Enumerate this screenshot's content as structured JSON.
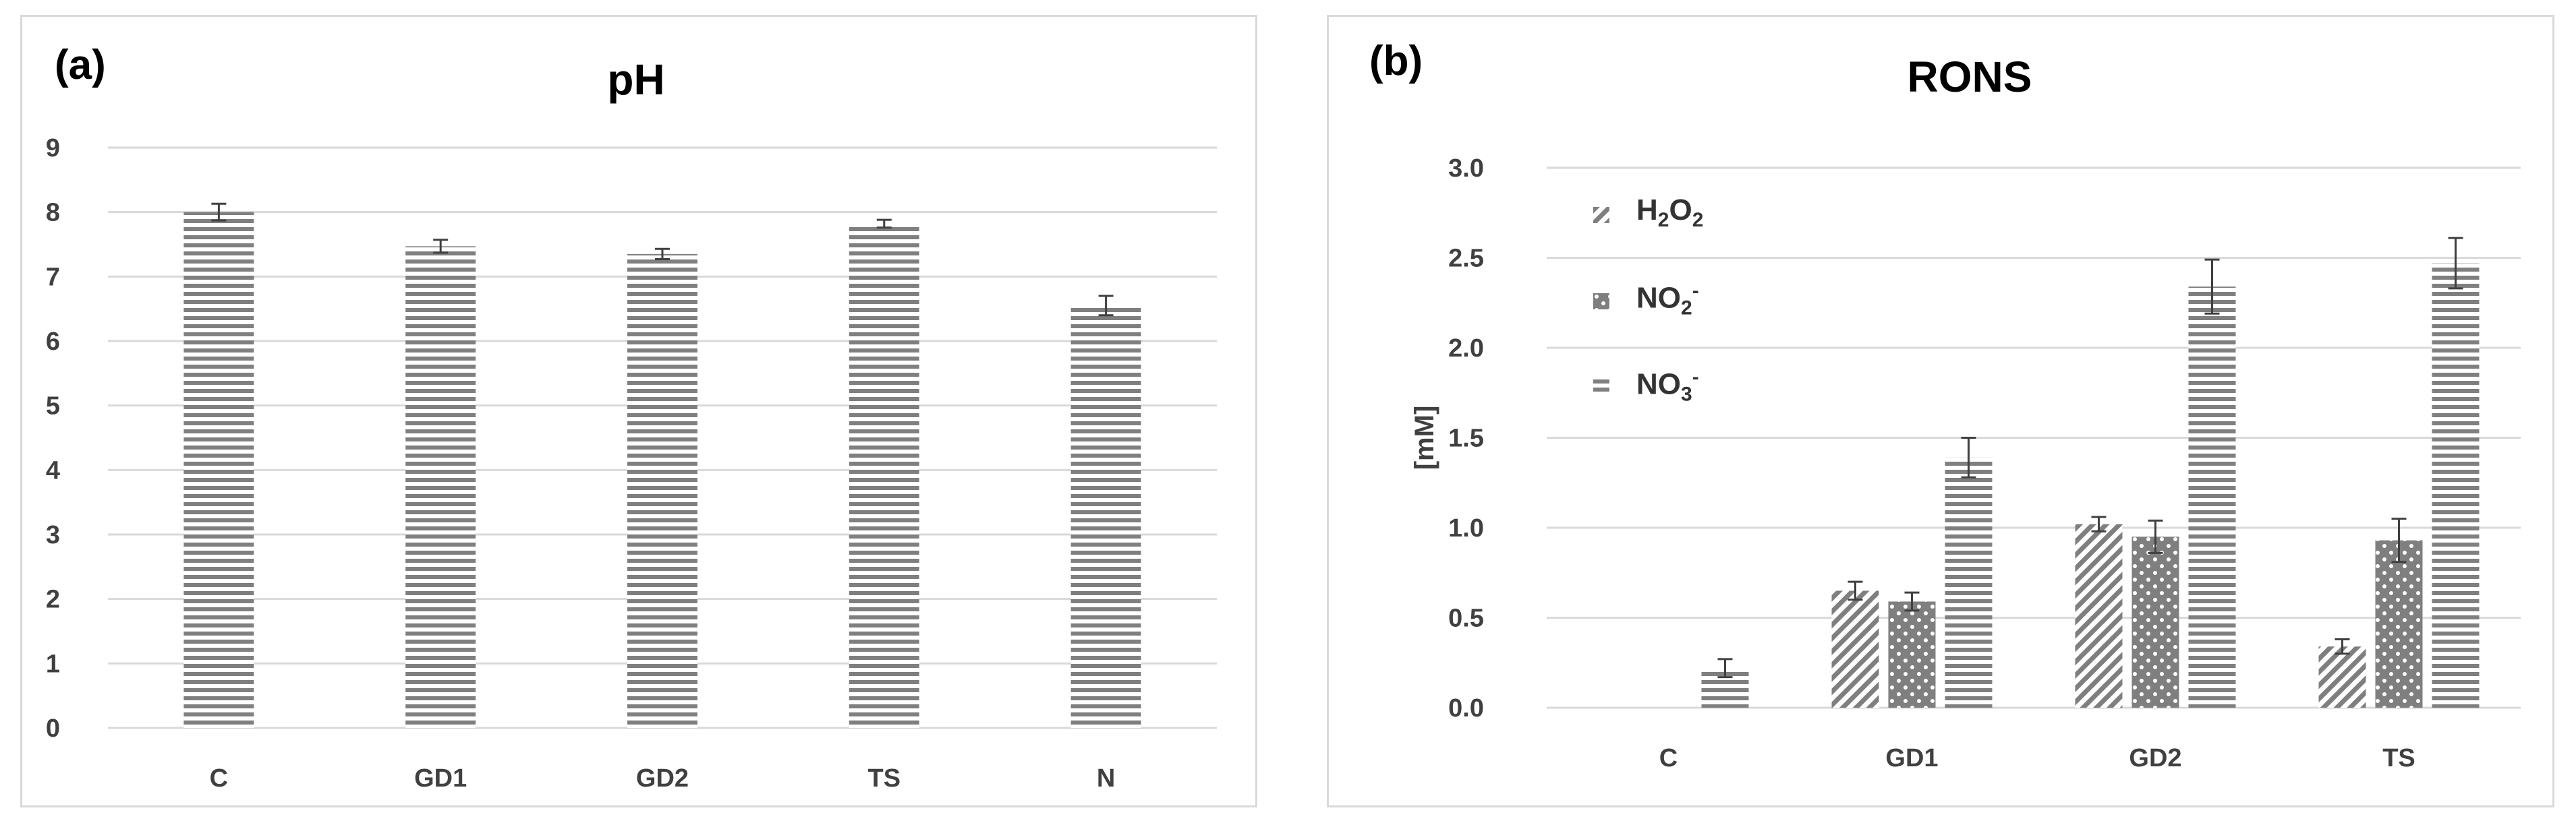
{
  "chart_data": [
    {
      "type": "bar",
      "panel_label": "(a)",
      "title": "pH",
      "xlabel": "",
      "ylabel": "",
      "categories": [
        "C",
        "GD1",
        "GD2",
        "TS",
        "N"
      ],
      "series": [
        {
          "name": "pH",
          "values": [
            8.0,
            7.47,
            7.35,
            7.82,
            6.55
          ],
          "errors": [
            0.13,
            0.1,
            0.08,
            0.06,
            0.15
          ]
        }
      ],
      "ylim": [
        0,
        9
      ],
      "yticks": [
        "0",
        "1",
        "2",
        "3",
        "4",
        "5",
        "6",
        "7",
        "8",
        "9"
      ],
      "grid": true,
      "legend": "none"
    },
    {
      "type": "bar",
      "panel_label": "(b)",
      "title": "RONS",
      "xlabel": "",
      "ylabel": "[mM]",
      "categories": [
        "C",
        "GD1",
        "GD2",
        "TS"
      ],
      "series": [
        {
          "name": "H2O2",
          "values": [
            0.0,
            0.65,
            1.02,
            0.34
          ],
          "errors": [
            0.0,
            0.05,
            0.04,
            0.04
          ]
        },
        {
          "name": "NO2-",
          "values": [
            0.0,
            0.59,
            0.95,
            0.93
          ],
          "errors": [
            0.0,
            0.05,
            0.09,
            0.12
          ]
        },
        {
          "name": "NO3-",
          "values": [
            0.22,
            1.39,
            2.34,
            2.47
          ],
          "errors": [
            0.05,
            0.11,
            0.15,
            0.14
          ]
        }
      ],
      "legend_entries": [
        {
          "main": "H",
          "sub1": "2",
          "mid": "O",
          "sub2": "2",
          "sup": ""
        },
        {
          "main": "NO",
          "sub1": "2",
          "mid": "",
          "sub2": "",
          "sup": "-"
        },
        {
          "main": "NO",
          "sub1": "3",
          "mid": "",
          "sub2": "",
          "sup": "-"
        }
      ],
      "ylim": [
        0,
        3.0
      ],
      "yticks": [
        "0.0",
        "0.5",
        "1.0",
        "1.5",
        "2.0",
        "2.5",
        "3.0"
      ],
      "grid": true,
      "legend": "top-left"
    }
  ]
}
